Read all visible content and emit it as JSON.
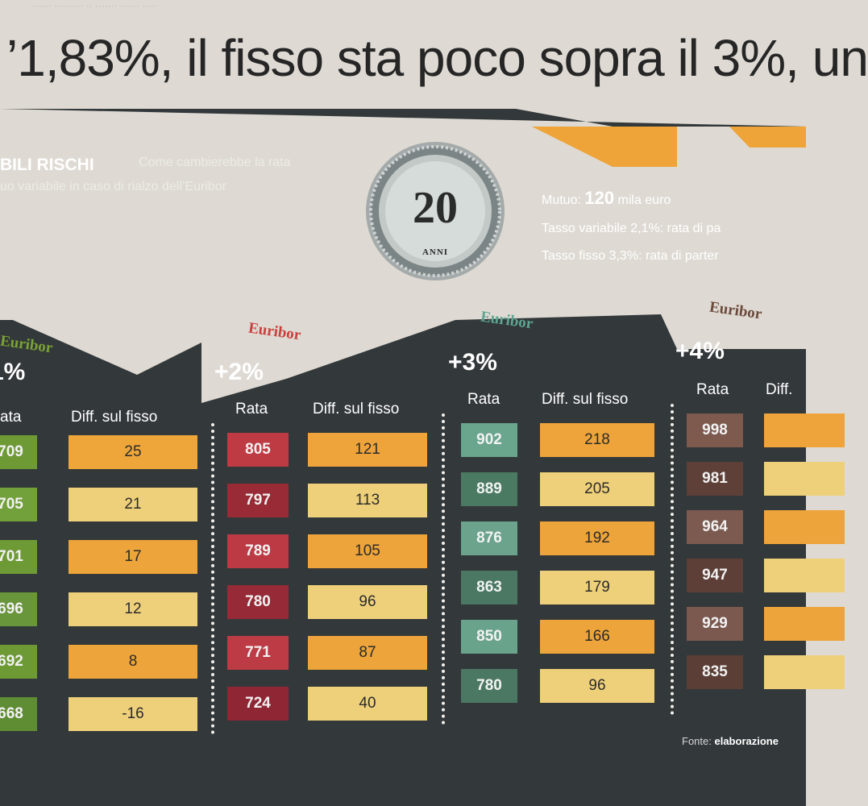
{
  "headline": "’1,83%, il fisso sta poco sopra il 3%, un",
  "infographic": {
    "title_main": "BILI RISCHI",
    "title_sub_1": "Come cambierebbe la rata",
    "title_sub_2": "uo variabile in caso di rialzo dell’Euribor",
    "badge": {
      "number": "20",
      "unit": "ANNI"
    },
    "mutuo_label": "Mutuo:",
    "mutuo_value": "120",
    "mutuo_unit": "mila euro",
    "tasso_variabile": "Tasso variabile 2,1%: rata di pa",
    "tasso_fisso": "Tasso fisso 3,3%: rata di parter",
    "source_label": "Fonte:",
    "source_value": "elaborazione",
    "colors": {
      "dark": "#33383a",
      "orange": "#eea438"
    },
    "groups": [
      {
        "euribor": "Euribor",
        "label": "1%",
        "euribor_color": "#7aa336",
        "rata_header": "ata",
        "diff_header": "Diff. sul fisso",
        "rata_values": [
          "709",
          "705",
          "701",
          "696",
          "692",
          "668"
        ],
        "rata_colors": [
          "#6d9a35",
          "#72a03a",
          "#6e9a36",
          "#69963a",
          "#6d9a35",
          "#5f8d34"
        ],
        "diff_values": [
          "25",
          "21",
          "17",
          "12",
          "8",
          "-16"
        ],
        "diff_colors": [
          "#eea63a",
          "#efd07a",
          "#eda43a",
          "#efd07a",
          "#eda43a",
          "#efd07a"
        ]
      },
      {
        "euribor": "Euribor",
        "label": "+2%",
        "euribor_color": "#c8413f",
        "rata_header": "Rata",
        "diff_header": "Diff. sul fisso",
        "rata_values": [
          "805",
          "797",
          "789",
          "780",
          "771",
          "724"
        ],
        "rata_colors": [
          "#bf3b43",
          "#982b36",
          "#bb3a44",
          "#962a36",
          "#bd3b44",
          "#8f2634"
        ],
        "diff_values": [
          "121",
          "113",
          "105",
          "96",
          "87",
          "40"
        ],
        "diff_colors": [
          "#eea43a",
          "#efd07a",
          "#eda43a",
          "#efd07a",
          "#eda43a",
          "#efd07a"
        ]
      },
      {
        "euribor": "Euribor",
        "label": "+3%",
        "euribor_color": "#5fa590",
        "rata_header": "Rata",
        "diff_header": "Diff. sul fisso",
        "rata_values": [
          "902",
          "889",
          "876",
          "863",
          "850",
          "780"
        ],
        "rata_colors": [
          "#6aa58d",
          "#4b7a63",
          "#6ba38c",
          "#4a7862",
          "#6aa38b",
          "#4b7863"
        ],
        "diff_values": [
          "218",
          "205",
          "192",
          "179",
          "166",
          "96"
        ],
        "diff_colors": [
          "#eea43a",
          "#efd07a",
          "#eda43a",
          "#efd07a",
          "#eda43a",
          "#efd07a"
        ]
      },
      {
        "euribor": "Euribor",
        "label": "+4%",
        "euribor_color": "#6b4a3c",
        "rata_header": "Rata",
        "diff_header": "Diff.",
        "rata_values": [
          "998",
          "981",
          "964",
          "947",
          "929",
          "835"
        ],
        "rata_colors": [
          "#7e5a4e",
          "#5e4038",
          "#7c5a4f",
          "#5d3f37",
          "#7c594e",
          "#5b3e36"
        ],
        "diff_values": [
          "",
          "",
          "",
          "",
          "",
          ""
        ],
        "diff_colors": [
          "#eea43a",
          "#efd07a",
          "#eda43a",
          "#efd07a",
          "#eda43a",
          "#efd07a"
        ]
      }
    ]
  }
}
